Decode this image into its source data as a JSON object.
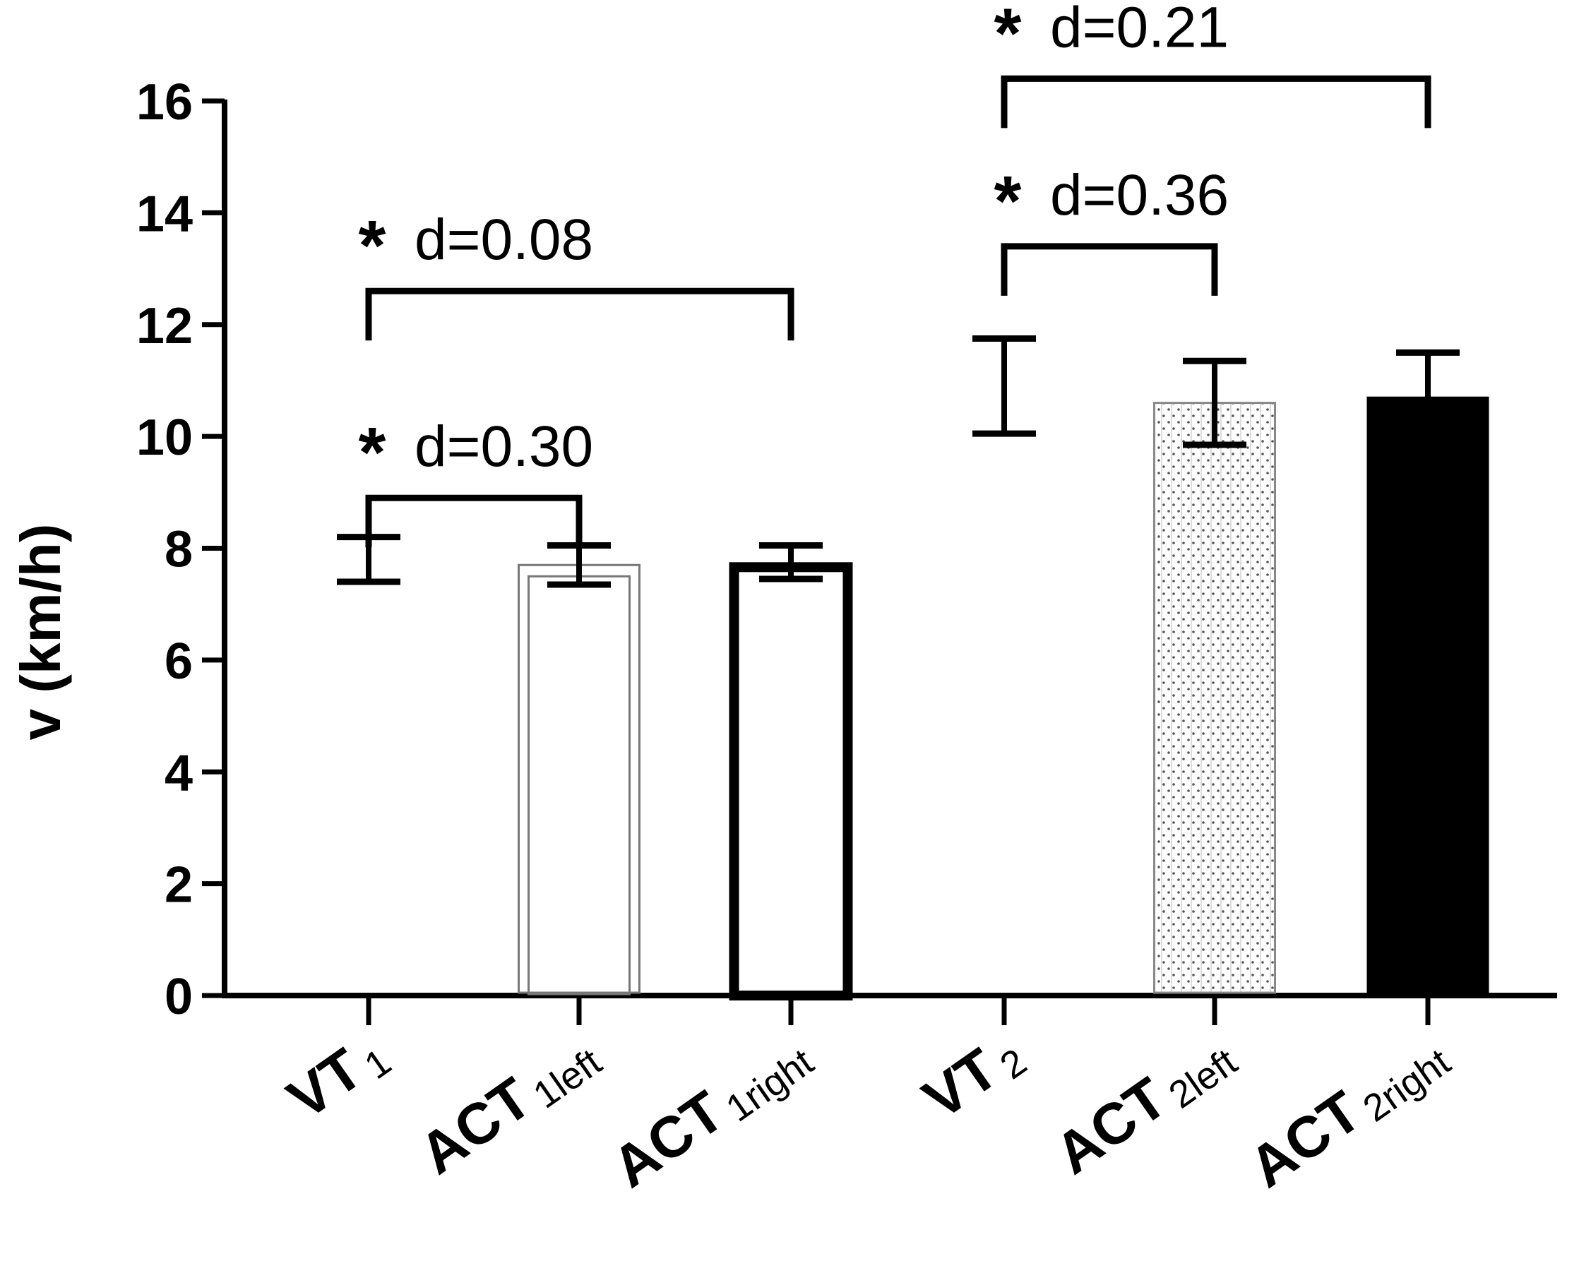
{
  "chart_data": {
    "type": "bar",
    "title": "",
    "xlabel": "",
    "ylabel": "v (km/h)",
    "ylim": [
      0,
      16
    ],
    "yticks": [
      0,
      2,
      4,
      6,
      8,
      10,
      12,
      14,
      16
    ],
    "grid": false,
    "categories": [
      {
        "main": "VT",
        "sub": "1"
      },
      {
        "main": "ACT",
        "sub": "1left"
      },
      {
        "main": "ACT",
        "sub": "1right"
      },
      {
        "main": "VT",
        "sub": "2"
      },
      {
        "main": "ACT",
        "sub": "2left"
      },
      {
        "main": "ACT",
        "sub": "2right"
      }
    ],
    "values": [
      7.8,
      7.7,
      7.75,
      10.9,
      10.6,
      10.7
    ],
    "error": [
      0.4,
      0.35,
      0.3,
      0.85,
      0.75,
      0.8
    ],
    "bar_styles": [
      "none",
      "thin-outline",
      "thick-outline",
      "none",
      "dotted-pattern",
      "solid-black"
    ],
    "comparisons": [
      {
        "from": 0,
        "to": 1,
        "star": "*",
        "label": "d=0.30",
        "y": 8.9
      },
      {
        "from": 0,
        "to": 2,
        "star": "*",
        "label": "d=0.08",
        "y": 12.6
      },
      {
        "from": 3,
        "to": 4,
        "star": "*",
        "label": "d=0.36",
        "y": 13.4
      },
      {
        "from": 3,
        "to": 5,
        "star": "*",
        "label": "d=0.21",
        "y": 16.4
      }
    ]
  }
}
